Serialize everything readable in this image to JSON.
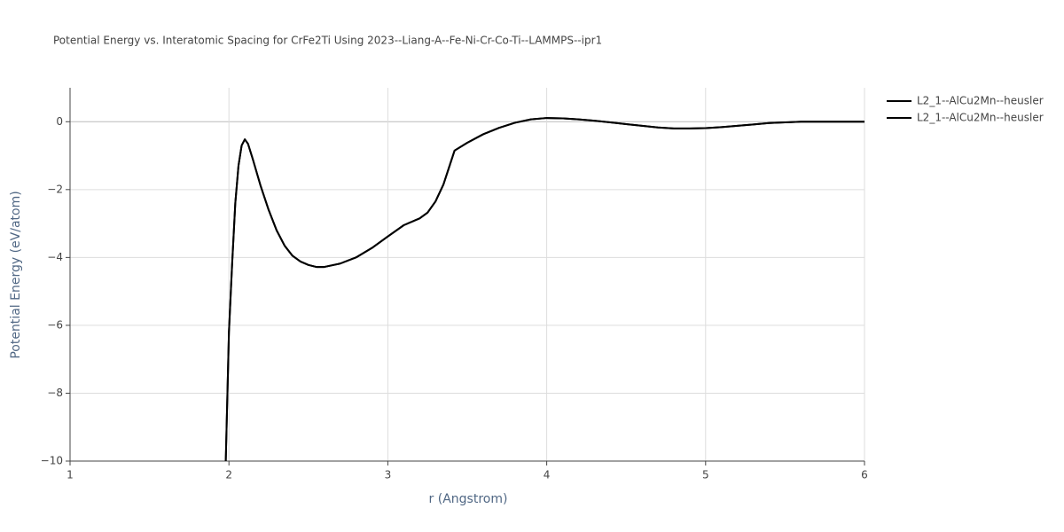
{
  "chart_data": {
    "type": "line",
    "title": "Potential Energy vs. Interatomic Spacing for CrFe2Ti Using 2023--Liang-A--Fe-Ni-Cr-Co-Ti--LAMMPS--ipr1",
    "x_label": "r (Angstrom)",
    "y_label": "Potential Energy (eV/atom)",
    "x": [
      1.98,
      2.0,
      2.02,
      2.04,
      2.06,
      2.08,
      2.1,
      2.12,
      2.15,
      2.2,
      2.25,
      2.3,
      2.35,
      2.4,
      2.45,
      2.5,
      2.55,
      2.6,
      2.7,
      2.8,
      2.9,
      3.0,
      3.1,
      3.2,
      3.25,
      3.3,
      3.35,
      3.42,
      3.5,
      3.6,
      3.7,
      3.8,
      3.9,
      4.0,
      4.1,
      4.2,
      4.3,
      4.4,
      4.5,
      4.6,
      4.7,
      4.8,
      4.9,
      5.0,
      5.1,
      5.2,
      5.3,
      5.4,
      5.5,
      5.6,
      5.8,
      6.0
    ],
    "series": [
      {
        "name": "L2_1--AlCu2Mn--heusler",
        "color": "#000000",
        "values": [
          -10,
          -6.2,
          -4.2,
          -2.4,
          -1.3,
          -0.7,
          -0.52,
          -0.65,
          -1.1,
          -1.9,
          -2.6,
          -3.2,
          -3.65,
          -3.95,
          -4.12,
          -4.22,
          -4.28,
          -4.28,
          -4.18,
          -4.0,
          -3.72,
          -3.38,
          -3.05,
          -2.85,
          -2.68,
          -2.35,
          -1.85,
          -0.85,
          -0.62,
          -0.37,
          -0.18,
          -0.03,
          0.07,
          0.11,
          0.1,
          0.07,
          0.03,
          -0.02,
          -0.07,
          -0.12,
          -0.17,
          -0.2,
          -0.2,
          -0.19,
          -0.16,
          -0.12,
          -0.08,
          -0.04,
          -0.02,
          0,
          0,
          0
        ]
      },
      {
        "name": "L2_1--AlCu2Mn--heusler",
        "color": "#000000",
        "values": [
          -10,
          -6.2,
          -4.2,
          -2.4,
          -1.3,
          -0.7,
          -0.52,
          -0.65,
          -1.1,
          -1.9,
          -2.6,
          -3.2,
          -3.65,
          -3.95,
          -4.12,
          -4.22,
          -4.28,
          -4.28,
          -4.18,
          -4.0,
          -3.72,
          -3.38,
          -3.05,
          -2.85,
          -2.68,
          -2.35,
          -1.85,
          -0.85,
          -0.62,
          -0.37,
          -0.18,
          -0.03,
          0.07,
          0.11,
          0.1,
          0.07,
          0.03,
          -0.02,
          -0.07,
          -0.12,
          -0.17,
          -0.2,
          -0.2,
          -0.19,
          -0.16,
          -0.12,
          -0.08,
          -0.04,
          -0.02,
          0,
          0,
          0
        ]
      }
    ],
    "xlim": [
      1,
      6
    ],
    "xticks": [
      1,
      2,
      3,
      4,
      5,
      6
    ],
    "ylim": [
      -10,
      1
    ],
    "yticks": [
      {
        "value": -10,
        "label": "−10"
      },
      {
        "value": -8,
        "label": "−8"
      },
      {
        "value": -6,
        "label": "−6"
      },
      {
        "value": -4,
        "label": "−4"
      },
      {
        "value": -2,
        "label": "−2"
      },
      0
    ],
    "grid": true,
    "legend": "right"
  }
}
